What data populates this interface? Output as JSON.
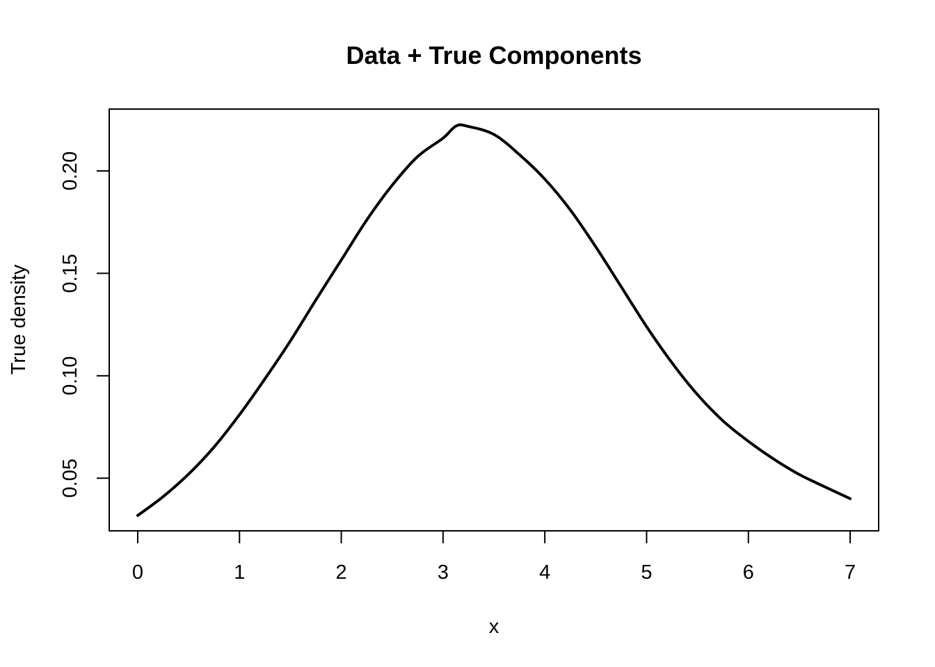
{
  "chart_data": {
    "type": "line",
    "title": "Data + True Components",
    "xlabel": "x",
    "ylabel": "True density",
    "xlim": [
      -0.28,
      7.28
    ],
    "ylim": [
      0.0243,
      0.2302
    ],
    "grid": false,
    "x_ticks": [
      0,
      1,
      2,
      3,
      4,
      5,
      6,
      7
    ],
    "x_tick_labels": [
      "0",
      "1",
      "2",
      "3",
      "4",
      "5",
      "6",
      "7"
    ],
    "y_ticks": [
      0.05,
      0.1,
      0.15,
      0.2
    ],
    "y_tick_labels": [
      "0.05",
      "0.10",
      "0.15",
      "0.20"
    ],
    "series": [
      {
        "color": "#000000",
        "x": [
          0,
          0.25,
          0.5,
          0.75,
          1.0,
          1.25,
          1.5,
          1.75,
          2.0,
          2.25,
          2.5,
          2.75,
          3.0,
          3.13,
          3.25,
          3.5,
          3.75,
          4.0,
          4.25,
          4.5,
          4.75,
          5.0,
          5.25,
          5.5,
          5.75,
          6.0,
          6.25,
          6.5,
          6.75,
          7.0
        ],
        "y": [
          0.0318,
          0.041,
          0.052,
          0.0652,
          0.081,
          0.0985,
          0.117,
          0.137,
          0.1565,
          0.176,
          0.193,
          0.207,
          0.216,
          0.222,
          0.2217,
          0.2178,
          0.208,
          0.196,
          0.181,
          0.163,
          0.1435,
          0.124,
          0.1063,
          0.0908,
          0.078,
          0.068,
          0.0593,
          0.0518,
          0.0458,
          0.04
        ]
      }
    ]
  }
}
